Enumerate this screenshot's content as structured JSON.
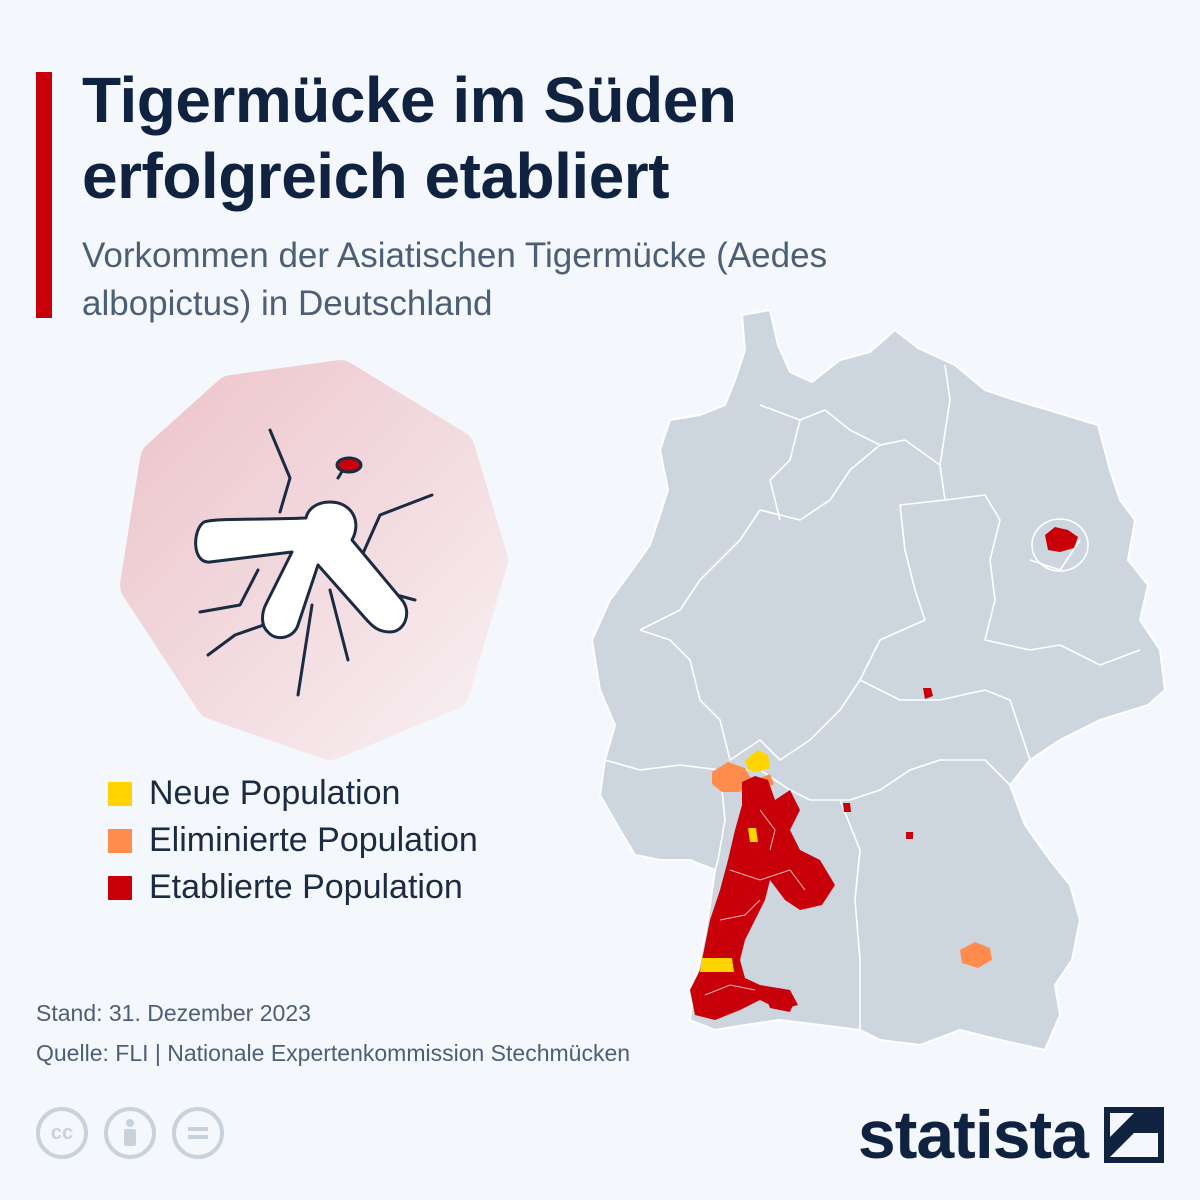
{
  "header": {
    "title": "Tigermücke im Süden erfolgreich etabliert",
    "subtitle": "Vorkommen der Asiatischen Tigermücke (Aedes albopictus) in Deutschland"
  },
  "map": {
    "country": "Deutschland",
    "base_color": "#cdd6df",
    "border_color": "#ffffff"
  },
  "legend": [
    {
      "label": "Neue Population",
      "color": "#ffd400"
    },
    {
      "label": "Eliminierte Population",
      "color": "#ff8c4d"
    },
    {
      "label": "Etablierte Population",
      "color": "#c8000a"
    }
  ],
  "footer": {
    "stand": "Stand: 31. Dezember 2023",
    "source": "Quelle: FLI | Nationale Expertenkommission Stechmücken",
    "license_icons": [
      "cc-icon",
      "attribution-icon",
      "no-derivatives-icon"
    ],
    "cc_text": "cc",
    "brand": "statista"
  },
  "colors": {
    "accent": "#c8000a",
    "title": "#0f2340",
    "subtitle": "#4d5f74"
  }
}
